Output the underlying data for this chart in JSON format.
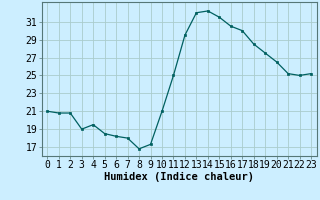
{
  "x": [
    0,
    1,
    2,
    3,
    4,
    5,
    6,
    7,
    8,
    9,
    10,
    11,
    12,
    13,
    14,
    15,
    16,
    17,
    18,
    19,
    20,
    21,
    22,
    23
  ],
  "y": [
    21.0,
    20.8,
    20.8,
    19.0,
    19.5,
    18.5,
    18.2,
    18.0,
    16.8,
    17.3,
    21.0,
    25.0,
    29.5,
    32.0,
    32.2,
    31.5,
    30.5,
    30.0,
    28.5,
    27.5,
    26.5,
    25.2,
    25.0,
    25.2
  ],
  "line_color": "#006060",
  "marker": "s",
  "marker_size": 2.0,
  "bg_color": "#cceeff",
  "grid_color": "#aacccc",
  "xlabel": "Humidex (Indice chaleur)",
  "ylabel_ticks": [
    17,
    19,
    21,
    23,
    25,
    27,
    29,
    31
  ],
  "xlim": [
    -0.5,
    23.5
  ],
  "ylim": [
    16.0,
    33.2
  ],
  "xlabel_fontsize": 7.5,
  "tick_fontsize": 7.0
}
